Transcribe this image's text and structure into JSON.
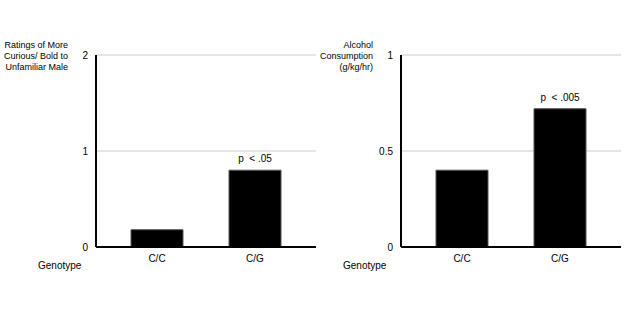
{
  "chart_data": [
    {
      "type": "bar",
      "y_label": "Ratings of More Curious/ Bold to Unfamiliar Male",
      "x_label": "Genotype",
      "categories": [
        "C/C",
        "C/G"
      ],
      "values": [
        0.18,
        0.8
      ],
      "color": "#000000",
      "ylim": [
        0,
        2
      ],
      "yticks": [
        0,
        1,
        2
      ],
      "grid": true,
      "annotations": [
        {
          "text": "p  < .05",
          "category": "C/G"
        }
      ]
    },
    {
      "type": "bar",
      "y_label": "Alcohol Consumption (g/kg/hr)",
      "x_label": "Genotype",
      "categories": [
        "C/C",
        "C/G"
      ],
      "values": [
        0.4,
        0.72
      ],
      "color": "#000000",
      "ylim": [
        0,
        1
      ],
      "yticks": [
        0,
        0.5,
        1
      ],
      "grid": true,
      "annotations": [
        {
          "text": "p  < .005",
          "category": "C/G"
        }
      ]
    }
  ]
}
